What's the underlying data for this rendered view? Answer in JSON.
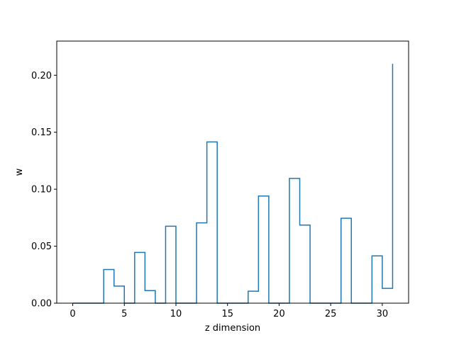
{
  "chart_data": {
    "type": "line",
    "step": "post",
    "xlabel": "z dimension",
    "ylabel": "w",
    "xlim": [
      -1.55,
      32.55
    ],
    "ylim": [
      0.0,
      0.23
    ],
    "xticks": [
      0,
      5,
      10,
      15,
      20,
      25,
      30
    ],
    "xtick_labels": [
      "0",
      "5",
      "10",
      "15",
      "20",
      "25",
      "30"
    ],
    "yticks": [
      0.0,
      0.05,
      0.1,
      0.15,
      0.2
    ],
    "ytick_labels": [
      "0.00",
      "0.05",
      "0.10",
      "0.15",
      "0.20"
    ],
    "grid": false,
    "line_color": "#1f77b4",
    "series": [
      {
        "x": [
          0,
          1,
          2,
          3,
          4,
          5,
          6,
          7,
          8,
          9,
          10,
          11,
          12,
          13,
          14,
          15,
          16,
          17,
          18,
          19,
          20,
          21,
          22,
          23,
          24,
          25,
          26,
          27,
          28,
          29,
          30,
          31
        ],
        "values": [
          0.0,
          0.0,
          0.0,
          0.0295,
          0.015,
          0.0,
          0.0445,
          0.011,
          0.0,
          0.0675,
          0.0,
          0.0,
          0.0705,
          0.1415,
          0.0,
          0.0,
          0.0,
          0.0105,
          0.094,
          0.0,
          0.0,
          0.1095,
          0.0685,
          0.0,
          0.0,
          0.0,
          0.0745,
          0.0,
          0.0,
          0.0415,
          0.013,
          0.21
        ]
      }
    ]
  }
}
